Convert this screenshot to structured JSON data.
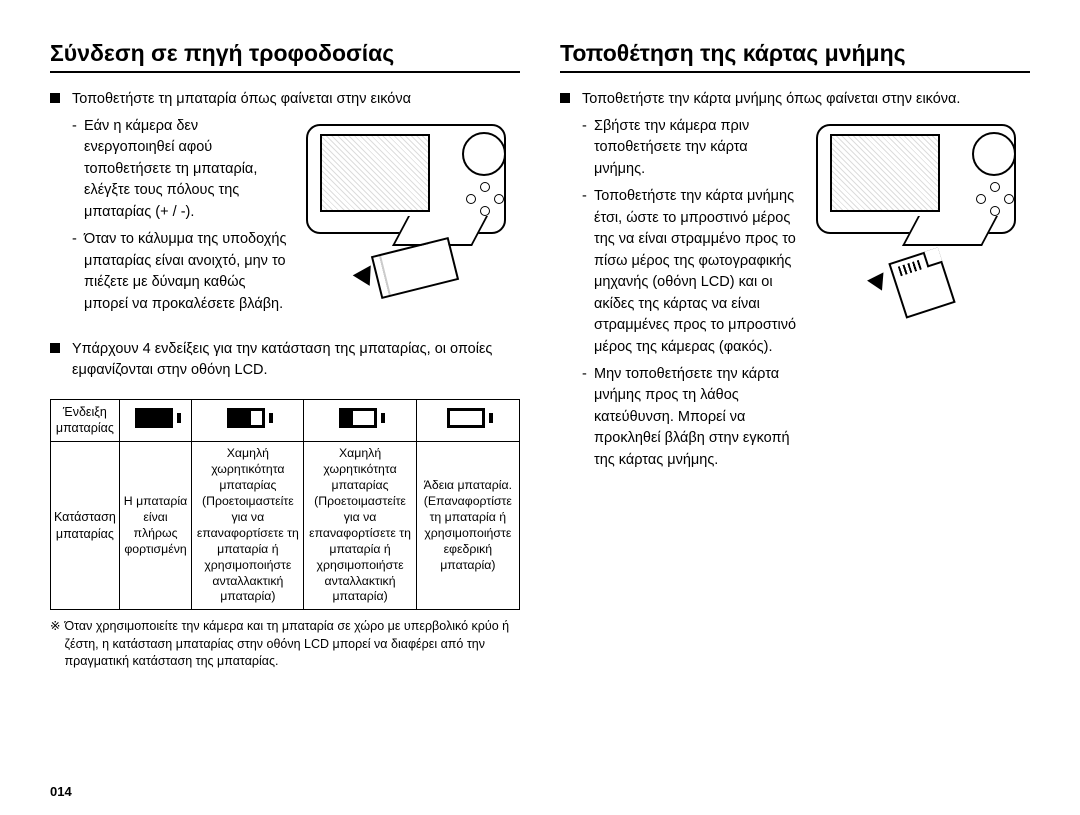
{
  "left": {
    "heading": "Σύνδεση σε πηγή τροφοδοσίας",
    "bullet1": "Τοποθετήστε τη μπαταρία όπως φαίνεται στην εικόνα",
    "sub1": "Εάν η κάμερα δεν ενεργοποιηθεί αφού τοποθετήσετε τη μπαταρία, ελέγξτε τους πόλους της μπαταρίας (+ / -).",
    "sub2": "Όταν το κάλυμμα της υποδοχής μπαταρίας είναι ανοιχτό, μην το πιέζετε με δύναμη καθώς μπορεί να προκαλέσετε βλάβη.",
    "bullet2": "Υπάρχουν 4 ενδείξεις για την κατάσταση της μπαταρίας, οι οποίες εμφανίζονται στην οθόνη LCD.",
    "table": {
      "row1_head": "Ένδειξη μπαταρίας",
      "row2_head": "Κατάσταση μπαταρίας",
      "cells": [
        "Η μπαταρία είναι πλήρως φορτισμένη",
        "Χαμηλή χωρητικότητα μπαταρίας (Προετοιμαστείτε για να επαναφορτίσετε τη μπαταρία ή χρησιμοποιήστε ανταλλακτική μπαταρία)",
        "Χαμηλή χωρητικότητα μπαταρίας (Προετοιμαστείτε για να επαναφορτίσετε τη μπαταρία ή χρησιμοποιήστε ανταλλακτική μπαταρία)",
        "Άδεια μπαταρία. (Επαναφορτίστε τη μπαταρία ή χρησιμοποιήστε εφεδρική μπαταρία)"
      ],
      "fills_pct": [
        100,
        66,
        33,
        0
      ]
    },
    "footnote": "Όταν χρησιμοποιείτε την κάμερα και τη μπαταρία σε χώρο με υπερβολικό κρύο ή ζέστη, η κατάσταση μπαταρίας στην οθόνη LCD μπορεί να διαφέρει από την πραγματική κατάσταση της μπαταρίας."
  },
  "right": {
    "heading": "Τοποθέτηση της κάρτας μνήμης",
    "bullet1": "Τοποθετήστε την κάρτα μνήμης όπως φαίνεται στην εικόνα.",
    "sub1": "Σβήστε την κάμερα πριν τοποθετήσετε την κάρτα μνήμης.",
    "sub2": "Τοποθετήστε την κάρτα μνήμης έτσι, ώστε το μπροστινό μέρος της να είναι στραμμένο προς το πίσω μέρος της φωτογραφικής μηχανής (οθόνη LCD) και οι ακίδες της κάρτας να είναι στραμμένες προς το μπροστινό μέρος της κάμερας (φακός).",
    "sub3": "Μην τοποθετήσετε την κάρτα μνήμης προς τη λάθος κατεύθυνση. Μπορεί να προκληθεί βλάβη στην εγκοπή της κάρτας μνήμης."
  },
  "page_number": "014"
}
